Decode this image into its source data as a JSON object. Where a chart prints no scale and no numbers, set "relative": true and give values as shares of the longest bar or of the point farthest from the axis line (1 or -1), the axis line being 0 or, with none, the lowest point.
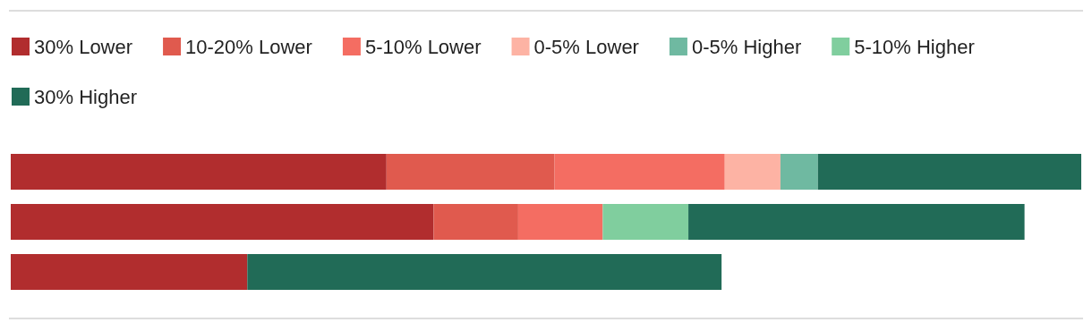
{
  "chart_data": {
    "type": "bar",
    "orientation": "horizontal",
    "stacked": true,
    "relative": true,
    "categories": [
      null,
      null,
      null
    ],
    "legend": "top left",
    "series": [
      {
        "name": "30% Lower",
        "color": "#b12d2e",
        "values": [
          0.351,
          0.395,
          0.221
        ]
      },
      {
        "name": "10-20% Lower",
        "color": "#e05a4e",
        "values": [
          0.157,
          0.079,
          null
        ]
      },
      {
        "name": "5-10% Lower",
        "color": "#f46d62",
        "values": [
          0.159,
          0.079,
          null
        ]
      },
      {
        "name": "0-5% Lower",
        "color": "#fdb3a4",
        "values": [
          0.052,
          null,
          null
        ]
      },
      {
        "name": "0-5% Higher",
        "color": "#6fb9a1",
        "values": [
          0.035,
          null,
          null
        ]
      },
      {
        "name": "5-10% Higher",
        "color": "#80ce9e",
        "values": [
          null,
          0.08,
          null
        ]
      },
      {
        "name": "30% Higher",
        "color": "#216b57",
        "values": [
          0.246,
          0.314,
          0.443
        ]
      }
    ]
  }
}
